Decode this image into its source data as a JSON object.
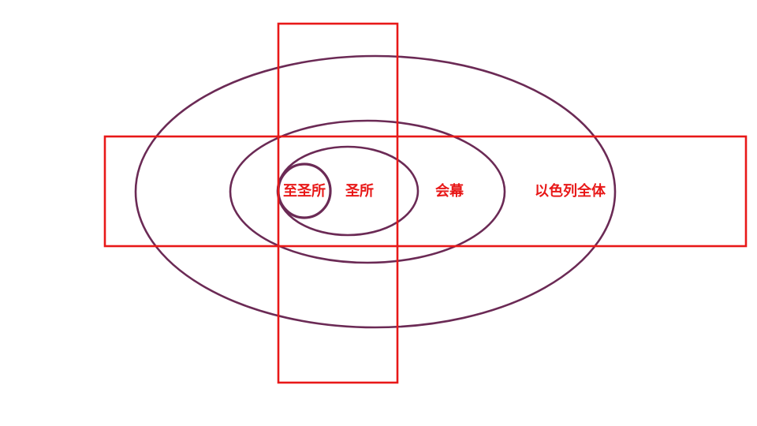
{
  "diagram": {
    "labels": {
      "most_holy_place": "至圣所",
      "holy_place": "圣所",
      "tabernacle": "会幕",
      "all_israel": "以色列全体"
    },
    "colors": {
      "ring": "#6b2a55",
      "box": "#e81818",
      "label": "#e81818",
      "background": "#ffffff"
    }
  }
}
